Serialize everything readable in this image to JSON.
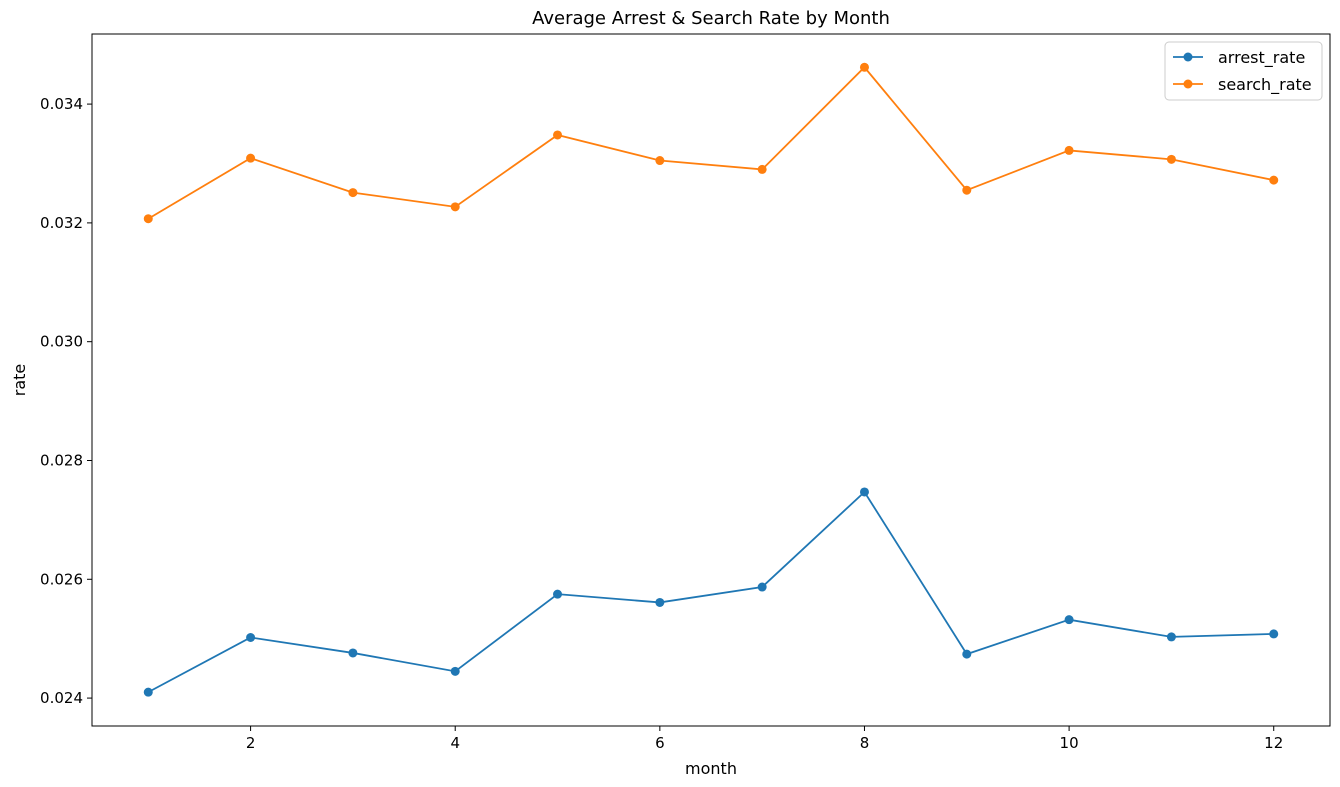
{
  "chart_data": {
    "type": "line",
    "title": "Average Arrest & Search Rate by Month",
    "xlabel": "month",
    "ylabel": "rate",
    "x": [
      1,
      2,
      3,
      4,
      5,
      6,
      7,
      8,
      9,
      10,
      11,
      12
    ],
    "xlim": [
      0.45,
      12.55
    ],
    "ylim": [
      0.02353,
      0.03518
    ],
    "xticks": [
      "2",
      "4",
      "6",
      "8",
      "10",
      "12"
    ],
    "yticks": [
      "0.024",
      "0.026",
      "0.028",
      "0.030",
      "0.032",
      "0.034"
    ],
    "grid": false,
    "legend_position": "top-right",
    "series": [
      {
        "name": "arrest_rate",
        "color": "#1f77b4",
        "values": [
          0.0241,
          0.02502,
          0.02476,
          0.02445,
          0.02575,
          0.02561,
          0.02587,
          0.02747,
          0.02474,
          0.02532,
          0.02503,
          0.02508
        ]
      },
      {
        "name": "search_rate",
        "color": "#ff7f0e",
        "values": [
          0.03207,
          0.03309,
          0.03251,
          0.03227,
          0.03348,
          0.03305,
          0.0329,
          0.03462,
          0.03255,
          0.03322,
          0.03307,
          0.03272
        ]
      }
    ]
  }
}
